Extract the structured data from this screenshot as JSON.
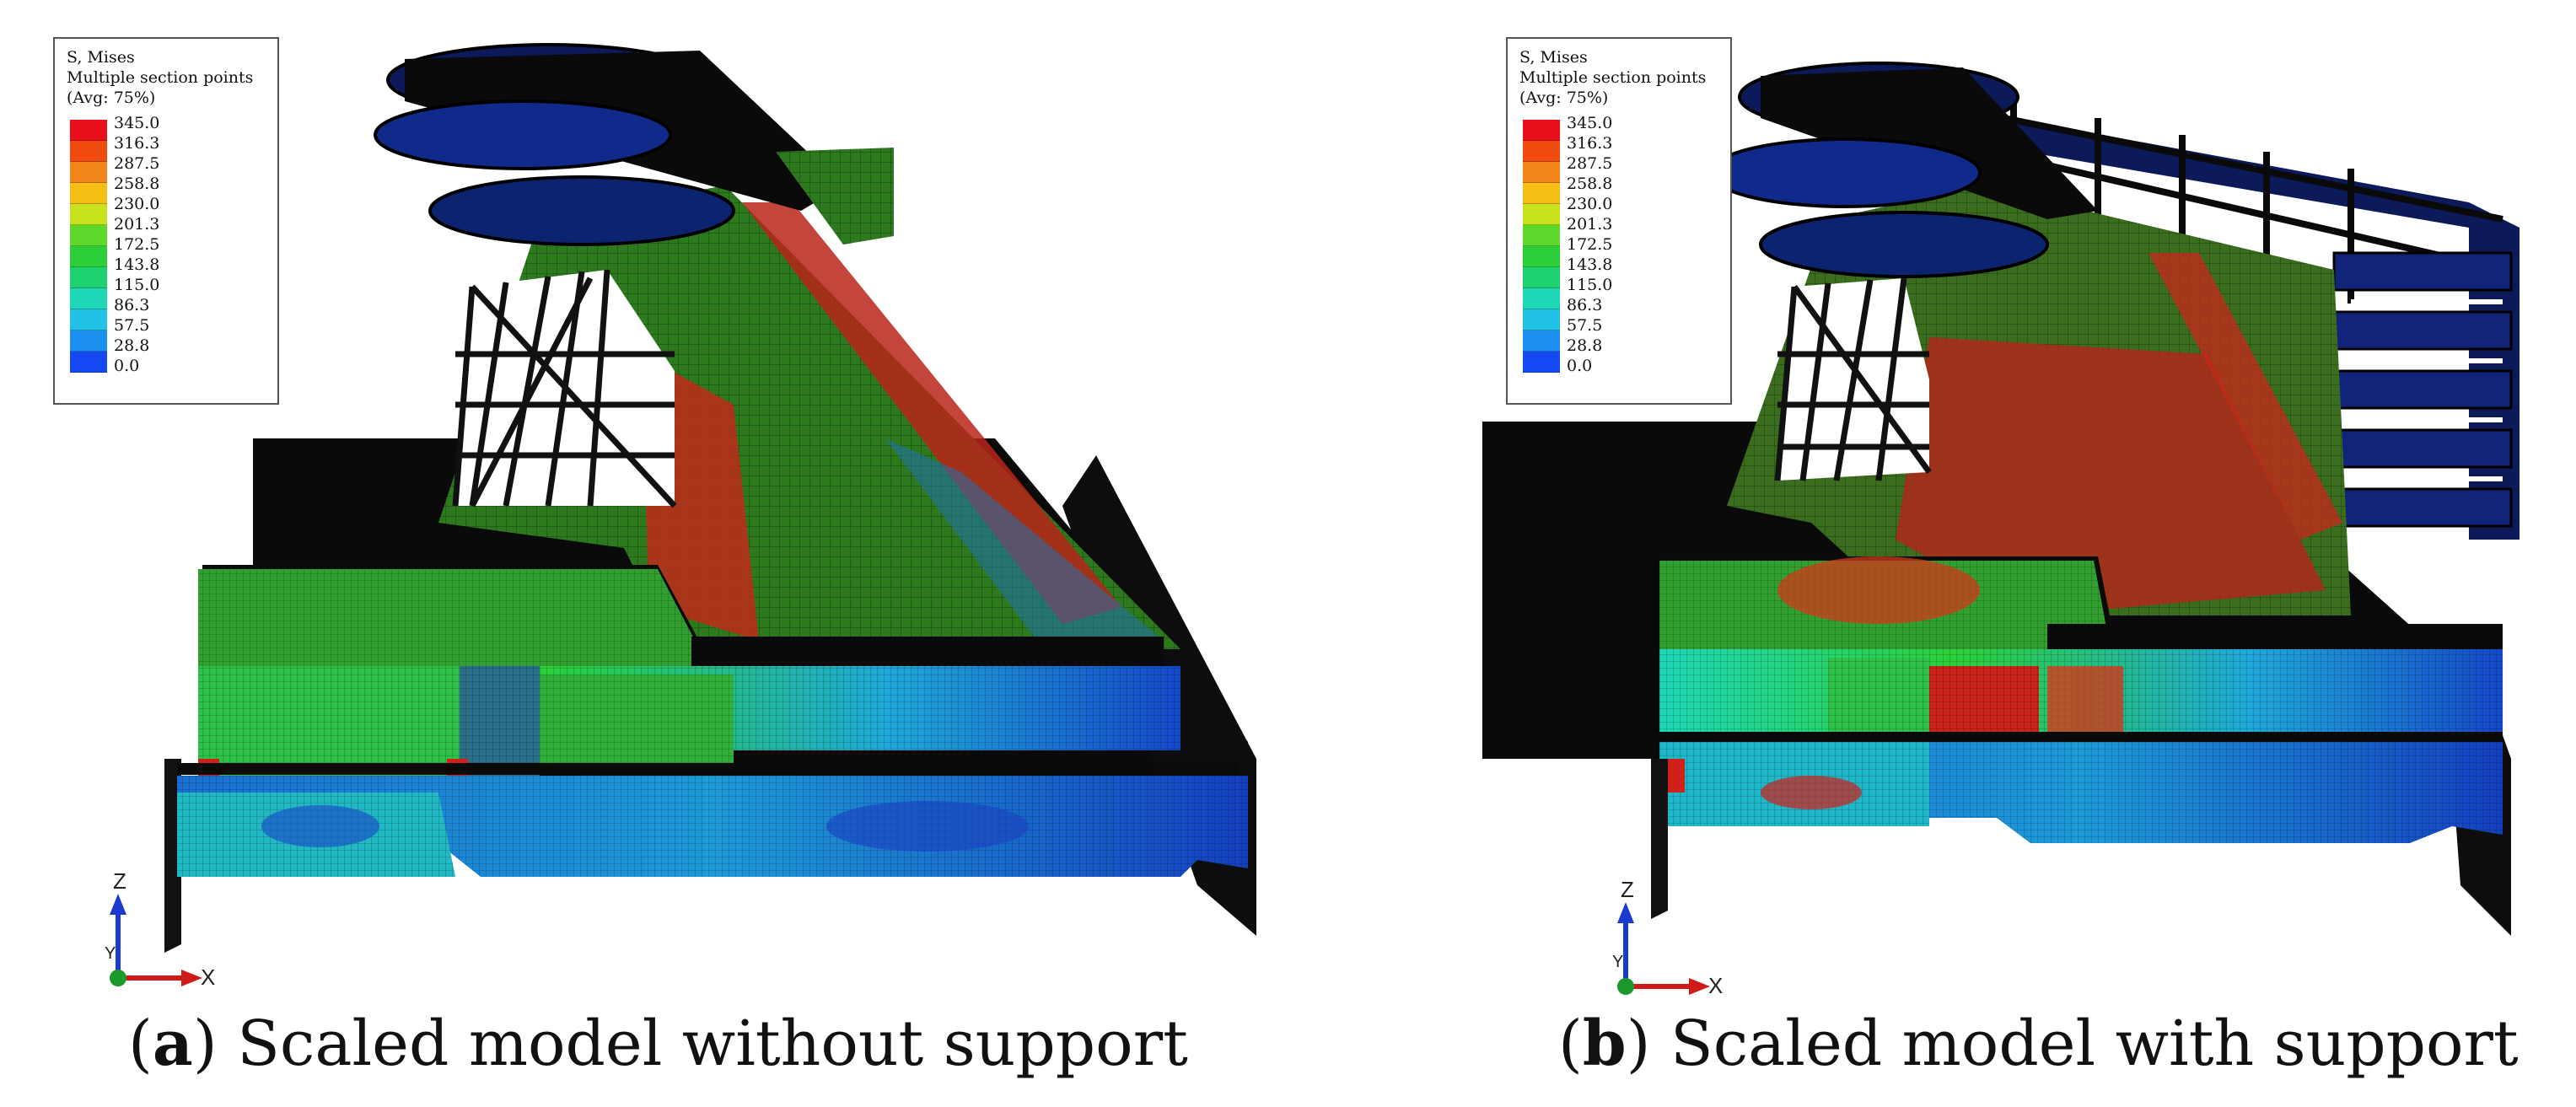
{
  "legend": {
    "title_line1": "S, Mises",
    "title_line2": "Multiple section points",
    "title_line3": "(Avg: 75%)",
    "values": [
      "345.0",
      "316.3",
      "287.5",
      "258.8",
      "230.0",
      "201.3",
      "172.5",
      "143.8",
      "115.0",
      "86.3",
      "57.5",
      "28.8",
      "0.0"
    ],
    "colors": [
      "#e8101a",
      "#f04c10",
      "#f2861a",
      "#f4bf12",
      "#c8e21c",
      "#5ed82a",
      "#2ccf38",
      "#1ed272",
      "#1ed7b6",
      "#20c2e6",
      "#1a8ff0",
      "#1448f2"
    ]
  },
  "axes": {
    "z_label": "Z",
    "x_label": "X",
    "y_label": "Y"
  },
  "panels": [
    {
      "id": "a",
      "caption_letter": "a",
      "caption_text": " Scaled model without support"
    },
    {
      "id": "b",
      "caption_letter": "b",
      "caption_text": " Scaled model with support"
    }
  ],
  "colors": {
    "red": "#c8201a",
    "green": "#2a8a2a",
    "cyan": "#20b0c0",
    "blue": "#1432b4",
    "dark": "#0a0a0a",
    "navy": "#0c1a5a"
  }
}
